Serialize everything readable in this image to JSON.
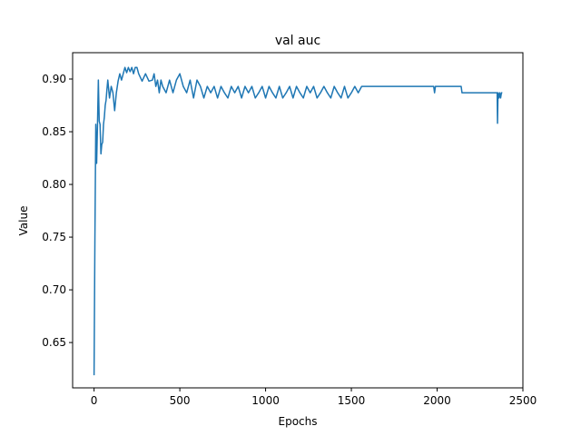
{
  "chart_data": {
    "type": "line",
    "title": "val auc",
    "xlabel": "Epochs",
    "ylabel": "Value",
    "xlim": [
      -125,
      2500
    ],
    "ylim": [
      0.607,
      0.925
    ],
    "xticks": [
      0,
      500,
      1000,
      1500,
      2000,
      2500
    ],
    "yticks": [
      0.65,
      0.7,
      0.75,
      0.8,
      0.85,
      0.9
    ],
    "xtick_labels": [
      "0",
      "500",
      "1000",
      "1500",
      "2000",
      "2500"
    ],
    "ytick_labels": [
      "0.65",
      "0.70",
      "0.75",
      "0.80",
      "0.85",
      "0.90"
    ],
    "grid": false,
    "line_color": "#1f77b4",
    "series": [
      {
        "x": [
          0,
          5,
          10,
          15,
          20,
          25,
          30,
          35,
          40,
          45,
          50,
          55,
          60,
          65,
          70,
          75,
          80,
          90,
          100,
          110,
          120,
          130,
          140,
          150,
          160,
          170,
          180,
          190,
          200,
          210,
          220,
          230,
          240,
          250,
          260,
          280,
          300,
          320,
          340,
          350,
          360,
          370,
          380,
          390,
          400,
          420,
          440,
          460,
          480,
          500,
          520,
          540,
          560,
          580,
          600,
          620,
          640,
          660,
          680,
          700,
          720,
          740,
          760,
          780,
          800,
          820,
          840,
          860,
          880,
          900,
          920,
          940,
          960,
          980,
          1000,
          1020,
          1040,
          1060,
          1080,
          1100,
          1120,
          1140,
          1160,
          1180,
          1200,
          1220,
          1240,
          1260,
          1280,
          1300,
          1320,
          1340,
          1360,
          1380,
          1400,
          1420,
          1440,
          1460,
          1480,
          1500,
          1520,
          1540,
          1560,
          1580,
          1600,
          1700,
          1800,
          1900,
          1980,
          1985,
          1990,
          2000,
          2100,
          2140,
          2145,
          2150,
          2200,
          2300,
          2350,
          2352,
          2355,
          2360,
          2365,
          2370,
          2375,
          2380
        ],
        "y": [
          0.619,
          0.75,
          0.857,
          0.82,
          0.857,
          0.899,
          0.86,
          0.857,
          0.829,
          0.838,
          0.84,
          0.857,
          0.864,
          0.875,
          0.88,
          0.89,
          0.899,
          0.882,
          0.893,
          0.887,
          0.87,
          0.887,
          0.898,
          0.905,
          0.899,
          0.905,
          0.911,
          0.906,
          0.911,
          0.907,
          0.911,
          0.905,
          0.911,
          0.911,
          0.905,
          0.898,
          0.905,
          0.898,
          0.899,
          0.905,
          0.893,
          0.899,
          0.887,
          0.899,
          0.893,
          0.887,
          0.899,
          0.887,
          0.899,
          0.905,
          0.893,
          0.887,
          0.899,
          0.882,
          0.899,
          0.893,
          0.882,
          0.893,
          0.887,
          0.893,
          0.882,
          0.893,
          0.887,
          0.882,
          0.893,
          0.887,
          0.893,
          0.882,
          0.893,
          0.887,
          0.893,
          0.882,
          0.887,
          0.893,
          0.882,
          0.893,
          0.887,
          0.882,
          0.893,
          0.882,
          0.887,
          0.893,
          0.882,
          0.893,
          0.887,
          0.882,
          0.893,
          0.887,
          0.893,
          0.882,
          0.887,
          0.893,
          0.887,
          0.882,
          0.893,
          0.887,
          0.882,
          0.893,
          0.882,
          0.887,
          0.893,
          0.887,
          0.893,
          0.893,
          0.893,
          0.893,
          0.893,
          0.893,
          0.893,
          0.887,
          0.893,
          0.893,
          0.893,
          0.893,
          0.887,
          0.887,
          0.887,
          0.887,
          0.887,
          0.858,
          0.887,
          0.882,
          0.887,
          0.882,
          0.887,
          0.887
        ]
      }
    ]
  }
}
